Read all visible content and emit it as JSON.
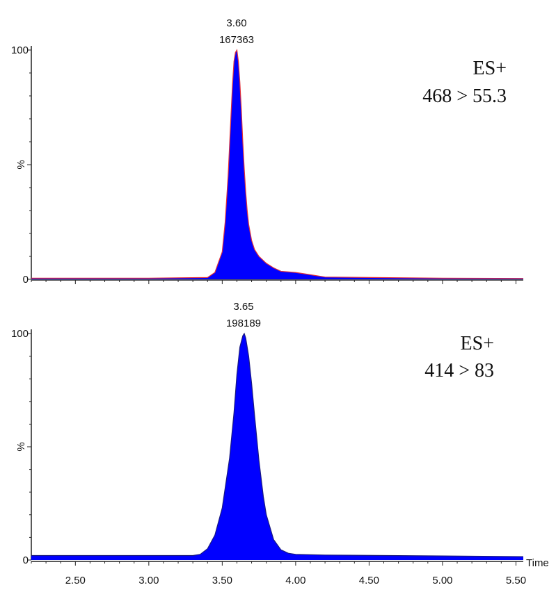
{
  "chart_data": {
    "type": "area",
    "x_axis": {
      "label": "Time",
      "range": [
        2.2,
        5.55
      ],
      "tick_values": [
        2.5,
        3.0,
        3.5,
        4.0,
        4.5,
        5.0,
        5.5
      ],
      "tick_labels": [
        "2.50",
        "3.00",
        "3.50",
        "4.00",
        "4.50",
        "5.00",
        "5.50"
      ],
      "minor_tick_step": 0.1
    },
    "panels": [
      {
        "id": "top",
        "mode": "ES+",
        "transition": "468 > 55.3",
        "y_axis": {
          "label": "%",
          "range": [
            0,
            100
          ],
          "tick_labels": [
            "100",
            "0"
          ]
        },
        "peak": {
          "retention_time_label": "3.60",
          "area_label": "167363"
        },
        "fill_color": "#0000ff",
        "trace_color": "#e0303a",
        "baseline_color": "#e0303a",
        "series": {
          "x": [
            2.2,
            3.0,
            3.4,
            3.45,
            3.5,
            3.52,
            3.54,
            3.56,
            3.57,
            3.58,
            3.59,
            3.6,
            3.61,
            3.62,
            3.63,
            3.64,
            3.65,
            3.66,
            3.67,
            3.68,
            3.7,
            3.72,
            3.75,
            3.8,
            3.85,
            3.9,
            4.0,
            4.1,
            4.2,
            5.0,
            5.55
          ],
          "y": [
            0.5,
            0.5,
            0.8,
            3,
            12,
            25,
            45,
            72,
            85,
            95,
            99,
            100,
            95,
            86,
            74,
            60,
            48,
            38,
            30,
            24,
            17,
            13,
            10,
            7,
            5,
            3.5,
            3,
            2,
            1,
            0.5,
            0.4
          ]
        }
      },
      {
        "id": "bottom",
        "mode": "ES+",
        "transition": "414 > 83",
        "y_axis": {
          "label": "%",
          "range": [
            0,
            100
          ],
          "tick_labels": [
            "100",
            "0"
          ]
        },
        "peak": {
          "retention_time_label": "3.65",
          "area_label": "198189"
        },
        "fill_color": "#0000ff",
        "trace_color": "#1a1a80",
        "baseline_color": "#1a1a80",
        "series": {
          "x": [
            2.2,
            3.0,
            3.3,
            3.35,
            3.4,
            3.45,
            3.5,
            3.55,
            3.58,
            3.6,
            3.62,
            3.64,
            3.65,
            3.66,
            3.68,
            3.7,
            3.72,
            3.75,
            3.78,
            3.8,
            3.85,
            3.9,
            3.95,
            4.0,
            4.2,
            5.0,
            5.55
          ],
          "y": [
            2,
            2,
            2,
            2.5,
            5,
            11,
            23,
            45,
            65,
            82,
            94,
            99,
            100,
            98,
            90,
            78,
            64,
            44,
            28,
            20,
            9,
            4.5,
            3,
            2.5,
            2.2,
            1.8,
            1.5
          ]
        }
      }
    ]
  }
}
